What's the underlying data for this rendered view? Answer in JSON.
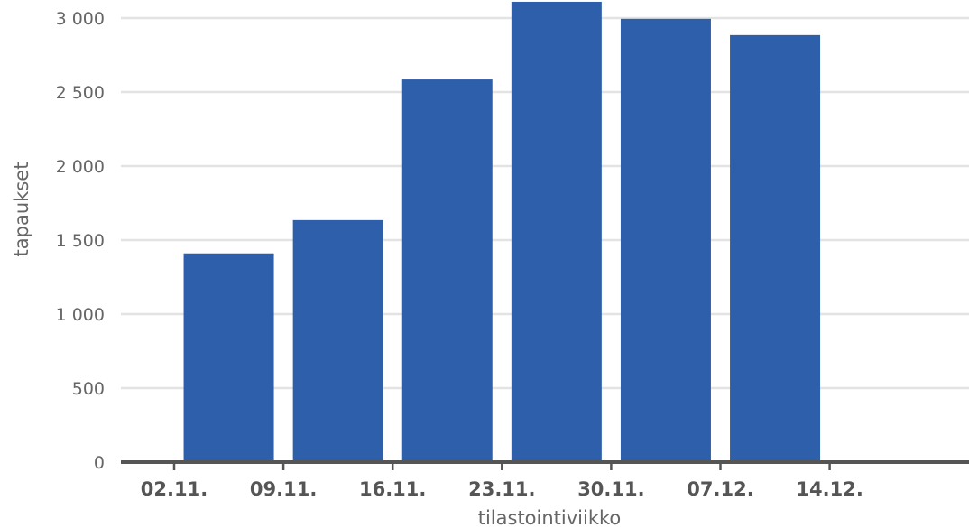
{
  "chart_data": {
    "type": "bar",
    "xlabel": "tilastointiviikko",
    "ylabel": "tapaukset",
    "ylim": [
      0,
      3000
    ],
    "yticks": [
      0,
      500,
      1000,
      1500,
      2000,
      2500,
      3000
    ],
    "ytick_labels": [
      "0",
      "500",
      "1 000",
      "1 500",
      "2 000",
      "2 500",
      "3 000"
    ],
    "xtick_labels": [
      "02.11.",
      "09.11.",
      "16.11.",
      "23.11.",
      "30.11.",
      "07.12.",
      "14.12."
    ],
    "values": [
      1410,
      1635,
      2585,
      3110,
      2995,
      2885
    ],
    "bar_color": "#2e5fab",
    "grid": true
  }
}
